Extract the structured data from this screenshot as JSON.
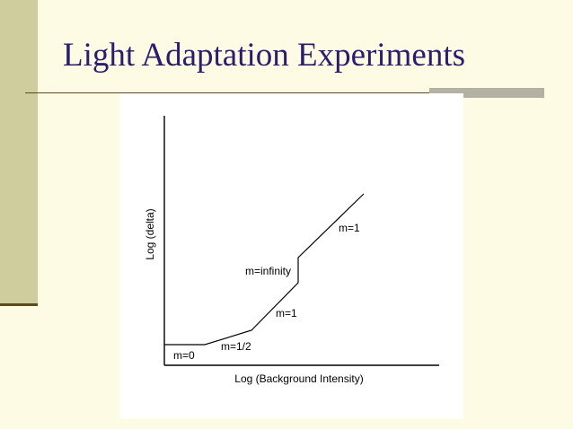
{
  "slide": {
    "title": "Light Adaptation Experiments",
    "colors": {
      "background": "#fdfbe4",
      "left_band": "#cfcc9e",
      "title_text": "#2b1d6e",
      "rule": "#5b4a1e",
      "accent_bar": "#b3b1a2"
    }
  },
  "diagram": {
    "x_axis_label": "Log (Background Intensity)",
    "y_axis_label": "Log (delta)",
    "segments": [
      {
        "label": "m=0"
      },
      {
        "label": "m=1/2"
      },
      {
        "label": "m=1"
      },
      {
        "label": "m=infinity"
      },
      {
        "label": "m=1"
      }
    ]
  }
}
